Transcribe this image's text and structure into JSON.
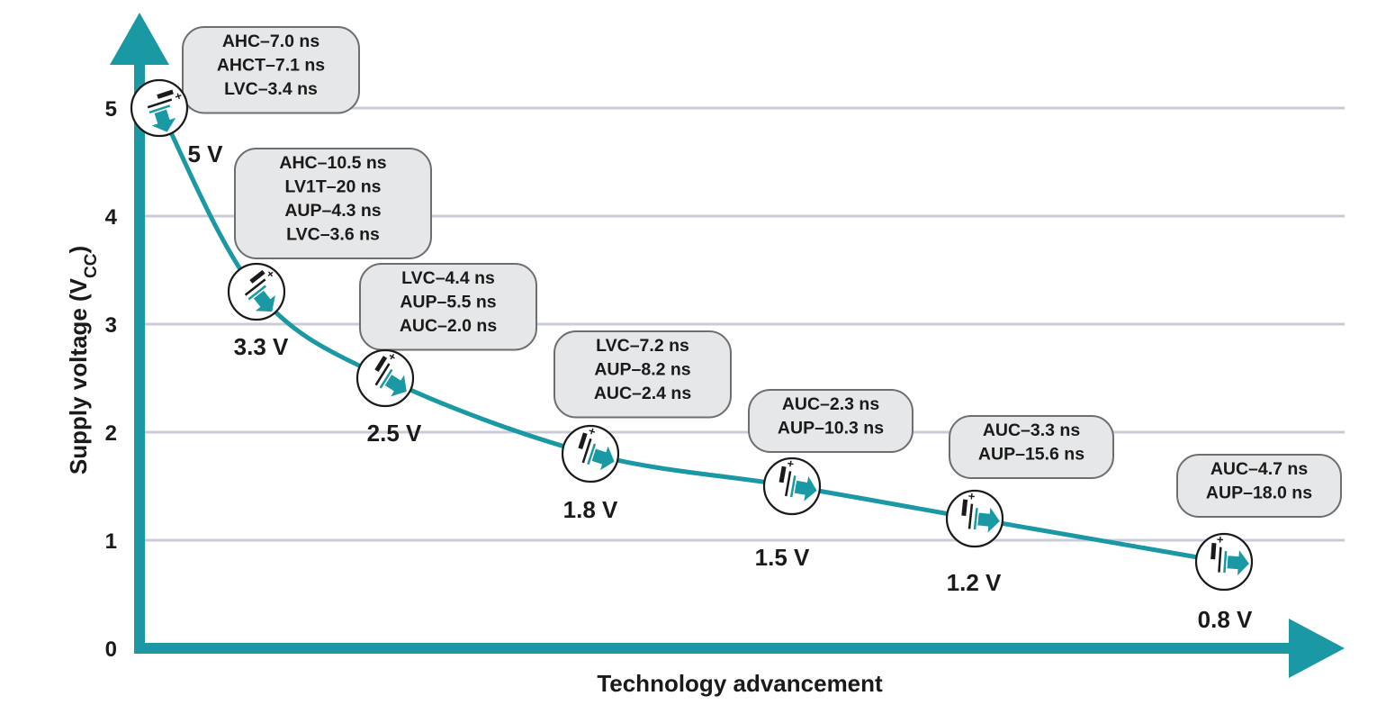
{
  "chart_data": {
    "type": "line",
    "title": "",
    "xlabel": "Technology advancement",
    "ylabel_main": "Supply voltage (V",
    "ylabel_sub": "CC",
    "ylabel_close": ")",
    "ylim": [
      0,
      5
    ],
    "yticks": [
      "0",
      "1",
      "2",
      "3",
      "4",
      "5"
    ],
    "grid": true,
    "colors": {
      "axis": "#1a98a3",
      "curve": "#1a98a3",
      "grid": "#c8ccd8"
    },
    "series": [
      {
        "values": [
          5.0,
          3.3,
          2.5,
          1.8,
          1.5,
          1.2,
          0.8
        ]
      }
    ],
    "points": [
      {
        "label": "5 V",
        "value": 5.0,
        "delays": [
          "AHC–7.0 ns",
          "AHCT–7.1 ns",
          "LVC–3.4 ns"
        ]
      },
      {
        "label": "3.3 V",
        "value": 3.3,
        "delays": [
          "AHC–10.5 ns",
          "LV1T–20 ns",
          "AUP–4.3 ns",
          "LVC–3.6 ns"
        ]
      },
      {
        "label": "2.5 V",
        "value": 2.5,
        "delays": [
          "LVC–4.4 ns",
          "AUP–5.5 ns",
          "AUC–2.0 ns"
        ]
      },
      {
        "label": "1.8 V",
        "value": 1.8,
        "delays": [
          "LVC–7.2 ns",
          "AUP–8.2 ns",
          "AUC–2.4 ns"
        ]
      },
      {
        "label": "1.5 V",
        "value": 1.5,
        "delays": [
          "AUC–2.3 ns",
          "AUP–10.3 ns"
        ]
      },
      {
        "label": "1.2 V",
        "value": 1.2,
        "delays": [
          "AUC–3.3 ns",
          "AUP–15.6 ns"
        ]
      },
      {
        "label": "0.8 V",
        "value": 0.8,
        "delays": [
          "AUC–4.7 ns",
          "AUP–18.0 ns"
        ]
      }
    ],
    "icon": "battery-icon"
  }
}
